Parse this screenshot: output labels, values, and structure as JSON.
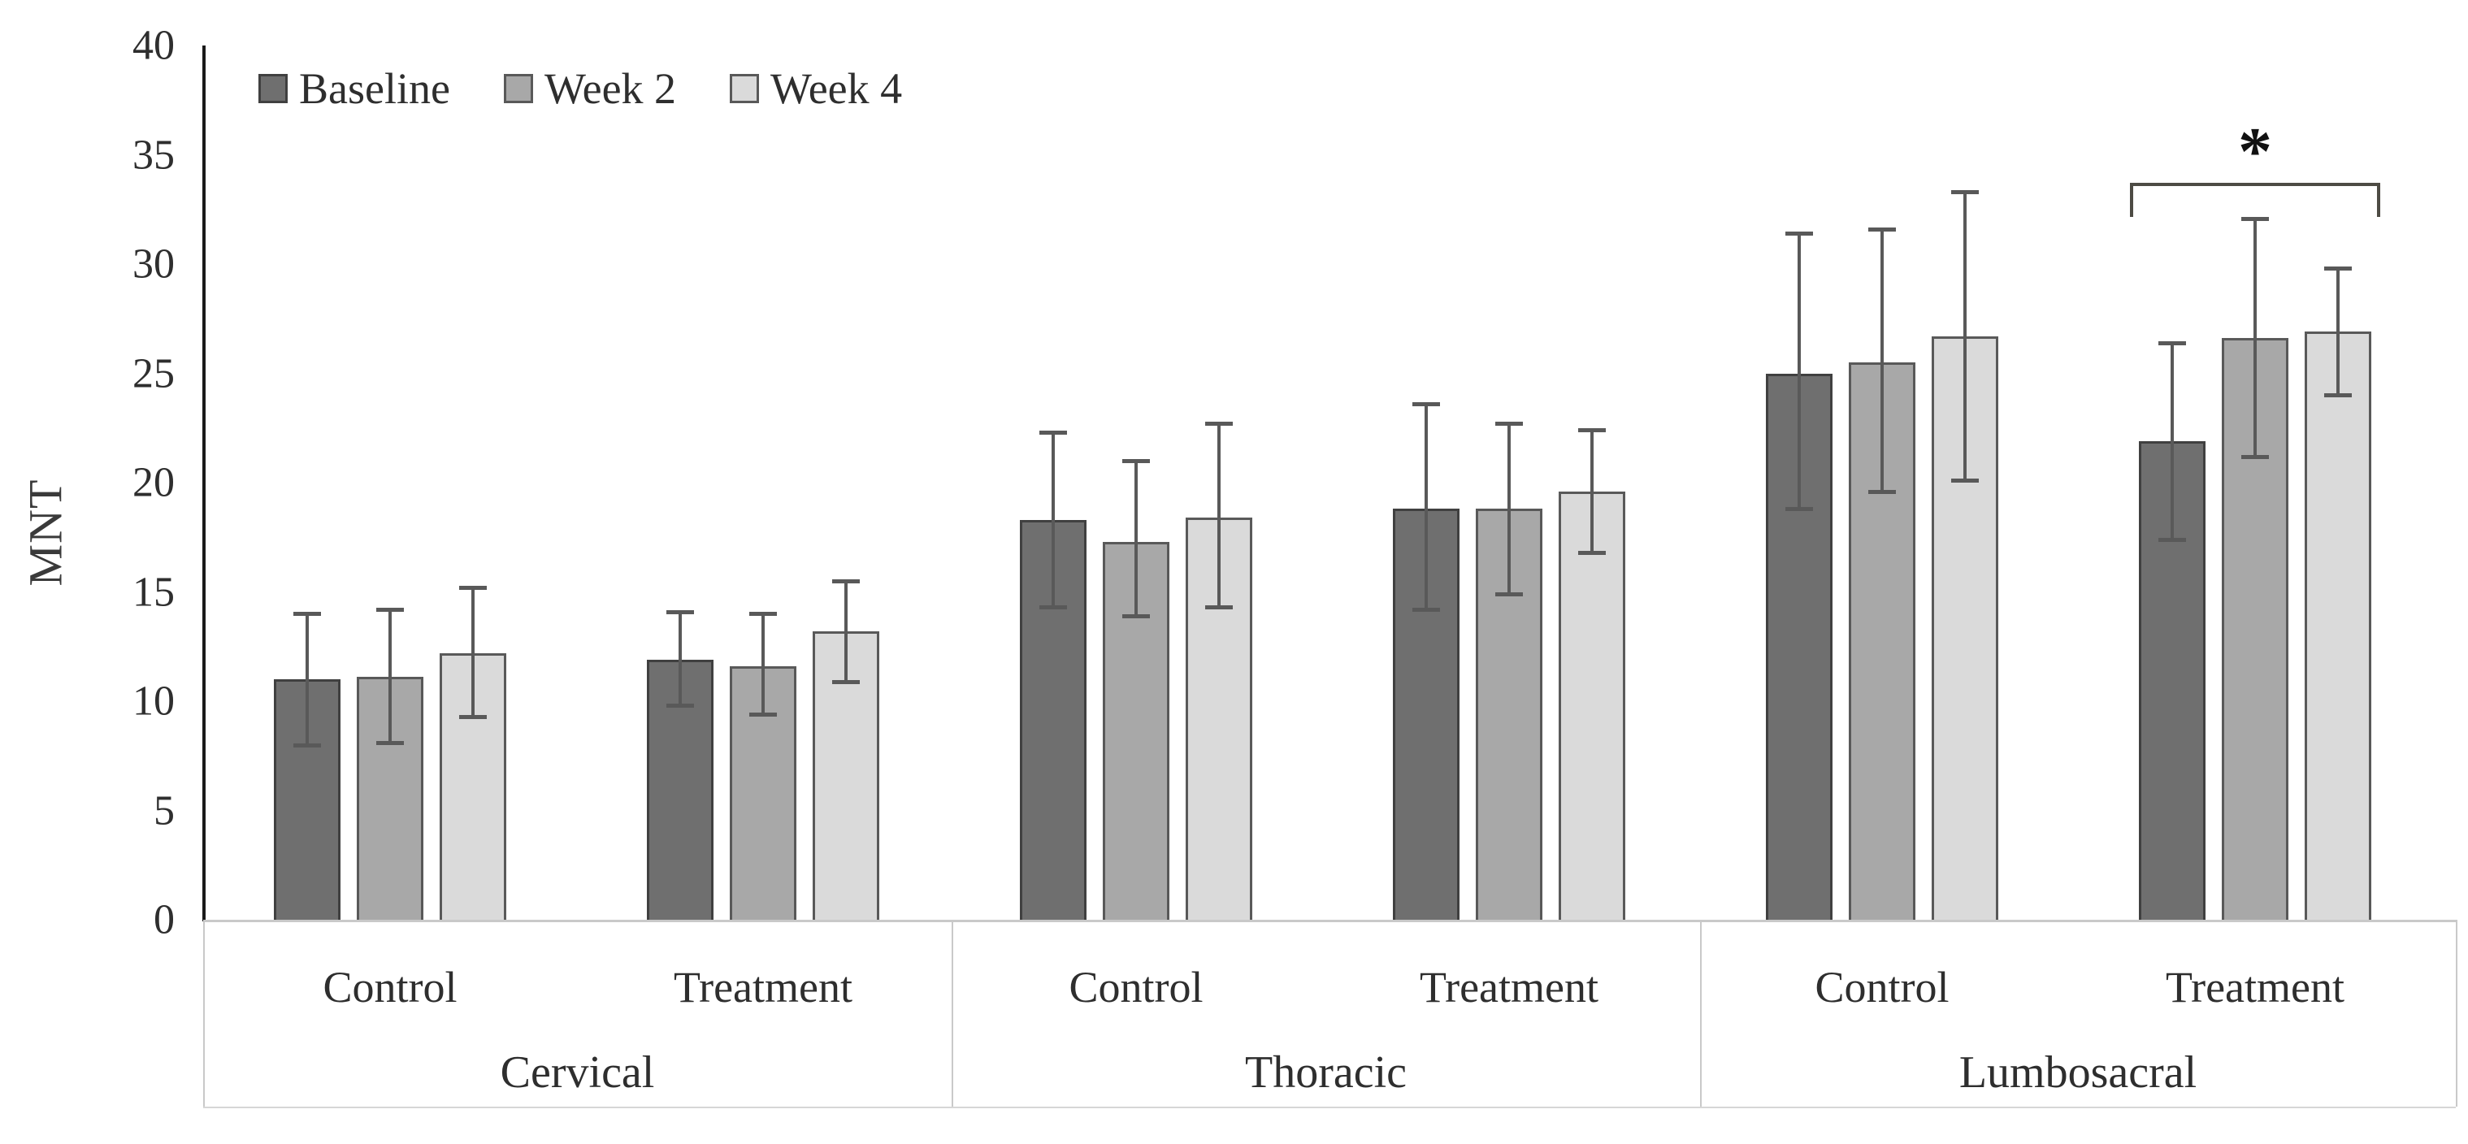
{
  "chart_data": {
    "type": "bar",
    "title": "",
    "ylabel": "MNT",
    "ylim": [
      0,
      40
    ],
    "ytick_step": 5,
    "ytick_labels": [
      "0",
      "5",
      "10",
      "15",
      "20",
      "25",
      "30",
      "35",
      "40"
    ],
    "grid": false,
    "legend_position": "top-left",
    "regions": [
      {
        "name": "Cervical",
        "conditions": [
          "Control",
          "Treatment"
        ]
      },
      {
        "name": "Thoracic",
        "conditions": [
          "Control",
          "Treatment"
        ]
      },
      {
        "name": "Lumbosacral",
        "conditions": [
          "Control",
          "Treatment"
        ]
      }
    ],
    "categories": [
      "Cervical Control",
      "Cervical Treatment",
      "Thoracic Control",
      "Thoracic Treatment",
      "Lumbosacral Control",
      "Lumbosacral Treatment"
    ],
    "series": [
      {
        "name": "Baseline",
        "fill": "#6f6f6f",
        "border": "#404040",
        "values": [
          11.0,
          11.9,
          18.3,
          18.8,
          25.0,
          21.9
        ],
        "err_high": [
          14.0,
          14.1,
          22.3,
          23.6,
          31.4,
          26.4
        ],
        "err_low": [
          8.0,
          9.8,
          14.3,
          14.2,
          18.8,
          17.4
        ]
      },
      {
        "name": "Week 2",
        "fill": "#a8a8a8",
        "border": "#595959",
        "values": [
          11.1,
          11.6,
          17.3,
          18.8,
          25.5,
          26.6
        ],
        "err_high": [
          14.2,
          14.0,
          21.0,
          22.7,
          31.6,
          32.1
        ],
        "err_low": [
          8.1,
          9.4,
          13.9,
          14.9,
          19.6,
          21.2
        ]
      },
      {
        "name": "Week 4",
        "fill": "#dadada",
        "border": "#595959",
        "values": [
          12.2,
          13.2,
          18.4,
          19.6,
          26.7,
          26.9
        ],
        "err_high": [
          15.2,
          15.5,
          22.7,
          22.4,
          33.3,
          29.8
        ],
        "err_low": [
          9.3,
          10.9,
          14.3,
          16.8,
          20.1,
          24.0
        ]
      }
    ],
    "error_bar_color": "#595959",
    "annotation": {
      "type": "significance-bracket",
      "text": "*",
      "target_category": "Lumbosacral Treatment",
      "y_value": 33.7
    }
  }
}
